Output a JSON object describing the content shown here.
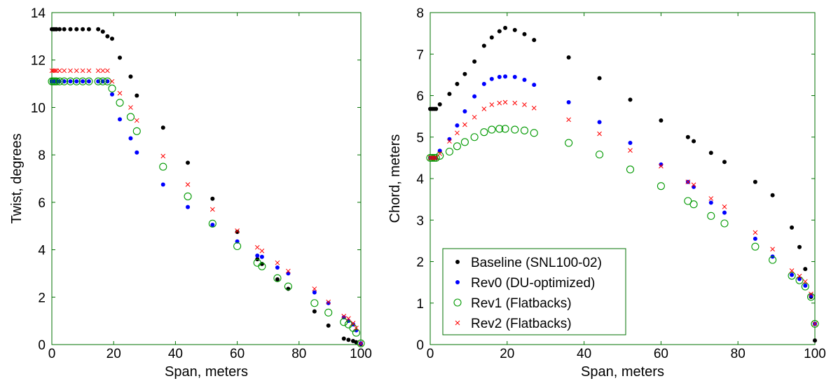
{
  "chart_data": [
    {
      "type": "scatter",
      "xlabel": "Span, meters",
      "ylabel": "Twist, degrees",
      "xlim": [
        0,
        100
      ],
      "ylim": [
        0,
        14
      ],
      "xticks": [
        "0",
        "20",
        "40",
        "60",
        "80",
        "100"
      ],
      "yticks": [
        "0",
        "2",
        "4",
        "6",
        "8",
        "10",
        "12",
        "14"
      ],
      "grid": false,
      "legend": "none",
      "series": [
        {
          "name": "Baseline (SNL100-02)",
          "color": "#000000",
          "marker": "dot",
          "x": [
            0,
            0.5,
            1,
            1.5,
            2.5,
            4,
            6,
            8,
            10,
            12,
            15,
            16.5,
            18,
            19.5,
            22,
            25.5,
            27.5,
            36,
            44,
            52,
            60,
            66.5,
            68,
            73,
            76.5,
            85,
            89.5,
            94.5,
            96,
            97.5,
            98.5,
            100
          ],
          "y": [
            13.3,
            13.3,
            13.3,
            13.3,
            13.3,
            13.3,
            13.3,
            13.3,
            13.3,
            13.3,
            13.3,
            13.2,
            13.0,
            12.9,
            12.1,
            11.3,
            10.5,
            9.15,
            7.67,
            6.15,
            4.75,
            3.6,
            3.4,
            2.75,
            2.35,
            1.4,
            0.8,
            0.25,
            0.2,
            0.15,
            0.1,
            0.02
          ]
        },
        {
          "name": "Rev0 (DU-optimized)",
          "color": "#0000ff",
          "marker": "dot",
          "x": [
            0,
            0.5,
            1,
            1.5,
            2.5,
            4,
            6,
            8,
            10,
            12,
            15,
            16.5,
            18,
            19.5,
            22,
            25.5,
            27.5,
            36,
            44,
            52,
            60,
            66.5,
            68,
            73,
            76.5,
            85,
            89.5,
            94.5,
            96,
            97.5,
            98.5,
            100
          ],
          "y": [
            11.1,
            11.1,
            11.1,
            11.1,
            11.1,
            11.1,
            11.1,
            11.1,
            11.1,
            11.1,
            11.1,
            11.1,
            11.1,
            10.55,
            9.5,
            8.7,
            8.1,
            6.75,
            5.8,
            5.05,
            4.35,
            3.75,
            3.7,
            3.25,
            3.0,
            2.2,
            1.75,
            1.15,
            1.0,
            0.85,
            0.6,
            0.05
          ]
        },
        {
          "name": "Rev1 (Flatbacks)",
          "color": "#009900",
          "marker": "circle",
          "x": [
            0,
            0.5,
            1,
            1.5,
            2.5,
            4,
            6,
            8,
            10,
            12,
            15,
            16.5,
            18,
            19.5,
            22,
            25.5,
            27.5,
            36,
            44,
            52,
            60,
            66.5,
            68,
            73,
            76.5,
            85,
            89.5,
            94.5,
            96,
            97.5,
            98.5,
            100
          ],
          "y": [
            11.1,
            11.1,
            11.1,
            11.1,
            11.1,
            11.1,
            11.1,
            11.1,
            11.1,
            11.1,
            11.1,
            11.1,
            11.1,
            10.8,
            10.2,
            9.6,
            9.0,
            7.5,
            6.25,
            5.1,
            4.15,
            3.45,
            3.3,
            2.8,
            2.45,
            1.75,
            1.35,
            0.95,
            0.85,
            0.7,
            0.5,
            0.05
          ]
        },
        {
          "name": "Rev2 (Flatbacks)",
          "color": "#ff0000",
          "marker": "x",
          "x": [
            0,
            0.5,
            1,
            1.5,
            2.5,
            4,
            6,
            8,
            10,
            12,
            15,
            16.5,
            18,
            19.5,
            22,
            25.5,
            27.5,
            36,
            44,
            52,
            60,
            66.5,
            68,
            73,
            76.5,
            85,
            89.5,
            94.5,
            96,
            97.5,
            98.5,
            100
          ],
          "y": [
            11.55,
            11.55,
            11.55,
            11.55,
            11.55,
            11.55,
            11.55,
            11.55,
            11.55,
            11.55,
            11.55,
            11.55,
            11.55,
            11.1,
            10.6,
            10.0,
            9.45,
            7.95,
            6.75,
            5.7,
            4.8,
            4.1,
            3.95,
            3.45,
            3.1,
            2.35,
            1.8,
            1.2,
            1.1,
            0.9,
            0.7,
            0.05
          ]
        }
      ]
    },
    {
      "type": "scatter",
      "xlabel": "Span, meters",
      "ylabel": "Chord, meters",
      "xlim": [
        0,
        100
      ],
      "ylim": [
        0,
        8
      ],
      "xticks": [
        "0",
        "20",
        "40",
        "60",
        "80",
        "100"
      ],
      "yticks": [
        "0",
        "1",
        "2",
        "3",
        "4",
        "5",
        "6",
        "7",
        "8"
      ],
      "grid": false,
      "legend": "bottom-left",
      "series": [
        {
          "name": "Baseline (SNL100-02)",
          "color": "#000000",
          "marker": "dot",
          "x": [
            0,
            0.5,
            1,
            1.5,
            2.5,
            5,
            7,
            9,
            11.5,
            14,
            16,
            18,
            19.5,
            22,
            24.5,
            27,
            36,
            44,
            52,
            60,
            67,
            68.5,
            73,
            76.5,
            84.5,
            89,
            94,
            96,
            97.5,
            99,
            100
          ],
          "y": [
            5.68,
            5.68,
            5.68,
            5.68,
            5.79,
            6.04,
            6.28,
            6.52,
            6.82,
            7.2,
            7.4,
            7.55,
            7.63,
            7.58,
            7.48,
            7.34,
            6.92,
            6.42,
            5.9,
            5.4,
            5.0,
            4.9,
            4.62,
            4.4,
            3.92,
            3.6,
            2.82,
            2.35,
            1.82,
            1.15,
            0.1
          ]
        },
        {
          "name": "Rev0 (DU-optimized)",
          "color": "#0000ff",
          "marker": "dot",
          "x": [
            0,
            0.5,
            1,
            1.5,
            2.5,
            5,
            7,
            9,
            11.5,
            14,
            16,
            18,
            19.5,
            22,
            24.5,
            27,
            36,
            44,
            52,
            60,
            67,
            68.5,
            73,
            76.5,
            84.5,
            89,
            94,
            96,
            97.5,
            99,
            100
          ],
          "y": [
            4.5,
            4.5,
            4.5,
            4.5,
            4.67,
            4.95,
            5.28,
            5.62,
            5.98,
            6.28,
            6.4,
            6.45,
            6.46,
            6.45,
            6.38,
            6.26,
            5.84,
            5.36,
            4.86,
            4.34,
            3.92,
            3.8,
            3.42,
            3.18,
            2.55,
            2.12,
            1.68,
            1.58,
            1.42,
            1.18,
            0.5
          ]
        },
        {
          "name": "Rev1 (Flatbacks)",
          "color": "#009900",
          "marker": "circle",
          "x": [
            0,
            0.5,
            1,
            1.5,
            2.5,
            5,
            7,
            9,
            11.5,
            14,
            16,
            18,
            19.5,
            22,
            24.5,
            27,
            36,
            44,
            52,
            60,
            67,
            68.5,
            73,
            76.5,
            84.5,
            89,
            94,
            96,
            97.5,
            99,
            100
          ],
          "y": [
            4.5,
            4.5,
            4.5,
            4.5,
            4.55,
            4.65,
            4.78,
            4.88,
            5.0,
            5.12,
            5.18,
            5.2,
            5.2,
            5.18,
            5.16,
            5.1,
            4.86,
            4.58,
            4.22,
            3.82,
            3.46,
            3.38,
            3.1,
            2.92,
            2.36,
            2.04,
            1.66,
            1.55,
            1.4,
            1.15,
            0.5
          ]
        },
        {
          "name": "Rev2 (Flatbacks)",
          "color": "#ff0000",
          "marker": "x",
          "x": [
            0,
            0.5,
            1,
            1.5,
            2.5,
            5,
            7,
            9,
            11.5,
            14,
            16,
            18,
            19.5,
            22,
            24.5,
            27,
            36,
            44,
            52,
            60,
            67,
            68.5,
            73,
            76.5,
            84.5,
            89,
            94,
            96,
            97.5,
            99,
            100
          ],
          "y": [
            4.5,
            4.5,
            4.5,
            4.5,
            4.6,
            4.9,
            5.1,
            5.3,
            5.48,
            5.68,
            5.78,
            5.82,
            5.84,
            5.82,
            5.78,
            5.7,
            5.42,
            5.08,
            4.68,
            4.3,
            3.92,
            3.85,
            3.52,
            3.32,
            2.7,
            2.3,
            1.78,
            1.65,
            1.52,
            1.22,
            0.5
          ]
        }
      ]
    }
  ]
}
